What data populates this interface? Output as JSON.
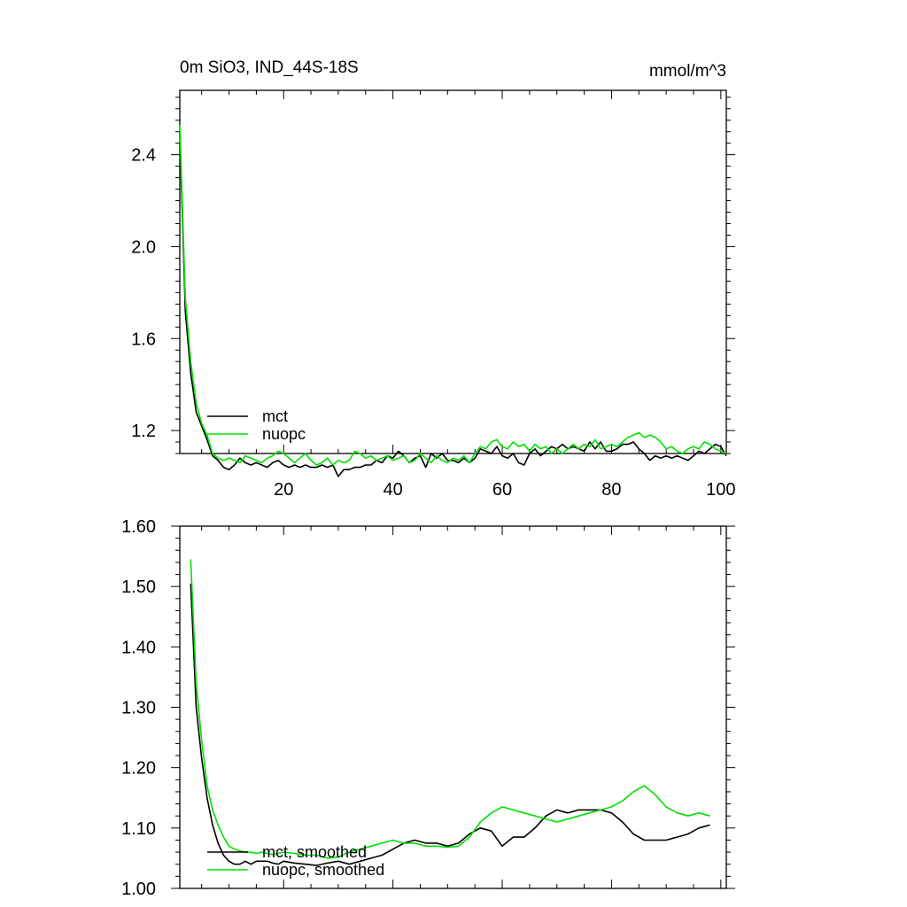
{
  "chart_data": [
    {
      "type": "line",
      "title": "0m SiO3, IND_44S-18S",
      "units": "mmol/m^3",
      "xlim": [
        1,
        101
      ],
      "ylim": [
        1.1,
        2.68
      ],
      "xticks": [
        20,
        40,
        60,
        80,
        100
      ],
      "xtick_labels": [
        "20",
        "40",
        "60",
        "80",
        "100"
      ],
      "yticks": [
        1.2,
        1.6,
        2.0,
        2.4
      ],
      "ytick_labels": [
        "1.2",
        "1.6",
        "2.0",
        "2.4"
      ],
      "legend_position": "bottom-left",
      "series": [
        {
          "name": "mct",
          "color": "#000000",
          "x": [
            1,
            2,
            3,
            4,
            5,
            6,
            7,
            8,
            9,
            10,
            11,
            12,
            13,
            14,
            15,
            16,
            17,
            18,
            19,
            20,
            21,
            22,
            23,
            24,
            25,
            26,
            27,
            28,
            29,
            30,
            31,
            32,
            33,
            34,
            35,
            36,
            37,
            38,
            39,
            40,
            41,
            42,
            43,
            44,
            45,
            46,
            47,
            48,
            49,
            50,
            51,
            52,
            53,
            54,
            55,
            56,
            57,
            58,
            59,
            60,
            61,
            62,
            63,
            64,
            65,
            66,
            67,
            68,
            69,
            70,
            71,
            72,
            73,
            74,
            75,
            76,
            77,
            78,
            79,
            80,
            81,
            82,
            83,
            84,
            85,
            86,
            87,
            88,
            89,
            90,
            91,
            92,
            93,
            94,
            95,
            96,
            97,
            98,
            99,
            100,
            101
          ],
          "values": [
            2.5,
            1.72,
            1.45,
            1.28,
            1.22,
            1.16,
            1.09,
            1.07,
            1.04,
            1.03,
            1.05,
            1.08,
            1.06,
            1.05,
            1.06,
            1.05,
            1.04,
            1.06,
            1.07,
            1.05,
            1.04,
            1.05,
            1.04,
            1.05,
            1.04,
            1.04,
            1.05,
            1.04,
            1.05,
            1.0,
            1.03,
            1.03,
            1.04,
            1.04,
            1.05,
            1.05,
            1.07,
            1.06,
            1.09,
            1.08,
            1.11,
            1.09,
            1.06,
            1.08,
            1.09,
            1.04,
            1.1,
            1.08,
            1.1,
            1.07,
            1.07,
            1.06,
            1.08,
            1.06,
            1.08,
            1.12,
            1.11,
            1.1,
            1.13,
            1.09,
            1.08,
            1.1,
            1.06,
            1.05,
            1.1,
            1.12,
            1.09,
            1.11,
            1.13,
            1.12,
            1.14,
            1.12,
            1.13,
            1.12,
            1.11,
            1.15,
            1.12,
            1.15,
            1.11,
            1.11,
            1.12,
            1.14,
            1.14,
            1.15,
            1.12,
            1.1,
            1.07,
            1.09,
            1.08,
            1.09,
            1.08,
            1.09,
            1.08,
            1.07,
            1.09,
            1.11,
            1.1,
            1.12,
            1.14,
            1.13,
            1.09
          ]
        },
        {
          "name": "nuopc",
          "color": "#00e000",
          "x": [
            1,
            2,
            3,
            4,
            5,
            6,
            7,
            8,
            9,
            10,
            11,
            12,
            13,
            14,
            15,
            16,
            17,
            18,
            19,
            20,
            21,
            22,
            23,
            24,
            25,
            26,
            27,
            28,
            29,
            30,
            31,
            32,
            33,
            34,
            35,
            36,
            37,
            38,
            39,
            40,
            41,
            42,
            43,
            44,
            45,
            46,
            47,
            48,
            49,
            50,
            51,
            52,
            53,
            54,
            55,
            56,
            57,
            58,
            59,
            60,
            61,
            62,
            63,
            64,
            65,
            66,
            67,
            68,
            69,
            70,
            71,
            72,
            73,
            74,
            75,
            76,
            77,
            78,
            79,
            80,
            81,
            82,
            83,
            84,
            85,
            86,
            87,
            88,
            89,
            90,
            91,
            92,
            93,
            94,
            95,
            96,
            97,
            98,
            99,
            100,
            101
          ],
          "values": [
            2.53,
            1.78,
            1.5,
            1.32,
            1.23,
            1.18,
            1.1,
            1.08,
            1.07,
            1.08,
            1.07,
            1.06,
            1.09,
            1.08,
            1.07,
            1.06,
            1.08,
            1.09,
            1.11,
            1.1,
            1.08,
            1.06,
            1.08,
            1.1,
            1.07,
            1.05,
            1.06,
            1.08,
            1.05,
            1.07,
            1.06,
            1.07,
            1.11,
            1.1,
            1.08,
            1.09,
            1.07,
            1.08,
            1.09,
            1.07,
            1.08,
            1.09,
            1.06,
            1.07,
            1.1,
            1.08,
            1.06,
            1.09,
            1.07,
            1.06,
            1.08,
            1.07,
            1.09,
            1.06,
            1.1,
            1.13,
            1.12,
            1.15,
            1.16,
            1.13,
            1.12,
            1.15,
            1.13,
            1.14,
            1.11,
            1.14,
            1.12,
            1.13,
            1.1,
            1.12,
            1.1,
            1.12,
            1.14,
            1.12,
            1.14,
            1.13,
            1.16,
            1.12,
            1.13,
            1.14,
            1.13,
            1.15,
            1.17,
            1.18,
            1.19,
            1.17,
            1.18,
            1.17,
            1.15,
            1.12,
            1.13,
            1.11,
            1.1,
            1.12,
            1.13,
            1.12,
            1.15,
            1.14,
            1.12,
            1.11,
            1.1
          ]
        }
      ]
    },
    {
      "type": "line",
      "xlim": [
        1,
        101
      ],
      "ylim": [
        1.0,
        1.6
      ],
      "yticks": [
        1.0,
        1.1,
        1.2,
        1.3,
        1.4,
        1.5,
        1.6
      ],
      "ytick_labels": [
        "1.00",
        "1.10",
        "1.20",
        "1.30",
        "1.40",
        "1.50",
        "1.60"
      ],
      "legend_position": "bottom-left",
      "series": [
        {
          "name": "mct, smoothed",
          "color": "#000000",
          "x": [
            3,
            4,
            5,
            6,
            7,
            8,
            9,
            10,
            11,
            12,
            13,
            14,
            15,
            16,
            17,
            18,
            19,
            20,
            22,
            24,
            26,
            28,
            30,
            32,
            34,
            36,
            38,
            40,
            42,
            44,
            46,
            48,
            50,
            52,
            54,
            56,
            58,
            60,
            62,
            64,
            66,
            68,
            70,
            72,
            74,
            76,
            78,
            80,
            82,
            84,
            86,
            88,
            90,
            92,
            94,
            96,
            98
          ],
          "values": [
            1.505,
            1.3,
            1.215,
            1.15,
            1.105,
            1.075,
            1.055,
            1.045,
            1.04,
            1.04,
            1.045,
            1.04,
            1.045,
            1.045,
            1.045,
            1.042,
            1.04,
            1.045,
            1.042,
            1.04,
            1.038,
            1.042,
            1.045,
            1.04,
            1.045,
            1.05,
            1.055,
            1.065,
            1.075,
            1.08,
            1.075,
            1.075,
            1.07,
            1.075,
            1.09,
            1.1,
            1.095,
            1.07,
            1.085,
            1.085,
            1.1,
            1.12,
            1.13,
            1.125,
            1.13,
            1.13,
            1.13,
            1.125,
            1.11,
            1.09,
            1.08,
            1.08,
            1.08,
            1.085,
            1.09,
            1.1,
            1.105
          ]
        },
        {
          "name": "nuopc, smoothed",
          "color": "#00e000",
          "x": [
            3,
            4,
            5,
            6,
            7,
            8,
            9,
            10,
            11,
            12,
            13,
            14,
            15,
            16,
            17,
            18,
            19,
            20,
            22,
            24,
            26,
            28,
            30,
            32,
            34,
            36,
            38,
            40,
            42,
            44,
            46,
            48,
            50,
            52,
            54,
            56,
            58,
            60,
            62,
            64,
            66,
            68,
            70,
            72,
            74,
            76,
            78,
            80,
            82,
            84,
            86,
            88,
            90,
            92,
            94,
            96,
            98
          ],
          "values": [
            1.545,
            1.34,
            1.245,
            1.17,
            1.13,
            1.105,
            1.085,
            1.07,
            1.065,
            1.062,
            1.06,
            1.06,
            1.058,
            1.06,
            1.058,
            1.056,
            1.058,
            1.06,
            1.058,
            1.055,
            1.055,
            1.05,
            1.052,
            1.06,
            1.065,
            1.07,
            1.075,
            1.08,
            1.075,
            1.075,
            1.07,
            1.07,
            1.068,
            1.07,
            1.085,
            1.11,
            1.125,
            1.135,
            1.13,
            1.125,
            1.12,
            1.115,
            1.11,
            1.115,
            1.12,
            1.125,
            1.13,
            1.135,
            1.145,
            1.16,
            1.17,
            1.155,
            1.135,
            1.125,
            1.12,
            1.125,
            1.12
          ]
        }
      ]
    }
  ]
}
